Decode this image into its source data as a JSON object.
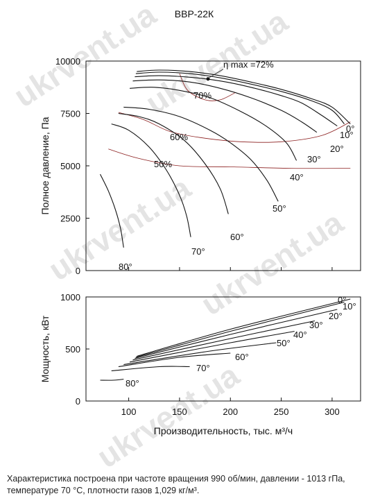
{
  "chart_data": {
    "type": "line",
    "title": "ВВР-22К",
    "xlabel": "Производительность, тыс. м³/ч",
    "x_ticks": [
      "100",
      "150",
      "200",
      "250",
      "300"
    ],
    "xlim": [
      58,
      328
    ],
    "top_panel": {
      "ylabel": "Полное давление, Па",
      "ylim": [
        0,
        10000
      ],
      "y_ticks": [
        "0",
        "2500",
        "5000",
        "7500",
        "10000"
      ],
      "eta_max_label": "η max =72%",
      "eta_max_point": [
        178,
        9150
      ],
      "efficiency_contours": [
        {
          "name": "70%",
          "points": [
            [
              150,
              9400
            ],
            [
              158,
              8600
            ],
            [
              175,
              8150
            ],
            [
              190,
              8150
            ],
            [
              205,
              8500
            ]
          ]
        },
        {
          "name": "60%",
          "points": [
            [
              90,
              7550
            ],
            [
              115,
              7200
            ],
            [
              140,
              6650
            ],
            [
              170,
              6350
            ],
            [
              210,
              6150
            ],
            [
              250,
              6150
            ],
            [
              290,
              6450
            ],
            [
              318,
              7100
            ]
          ]
        },
        {
          "name": "50%",
          "points": [
            [
              80,
              5800
            ],
            [
              110,
              5350
            ],
            [
              150,
              5000
            ],
            [
              200,
              4950
            ],
            [
              260,
              4880
            ],
            [
              318,
              4880
            ]
          ]
        }
      ],
      "series": [
        {
          "name": "0°",
          "points": [
            [
              108,
              9500
            ],
            [
              130,
              9570
            ],
            [
              160,
              9500
            ],
            [
              190,
              9300
            ],
            [
              220,
              9000
            ],
            [
              250,
              8650
            ],
            [
              280,
              8200
            ],
            [
              300,
              7800
            ],
            [
              318,
              7000
            ]
          ]
        },
        {
          "name": "10°",
          "points": [
            [
              107,
              9400
            ],
            [
              130,
              9470
            ],
            [
              160,
              9400
            ],
            [
              190,
              9200
            ],
            [
              220,
              8900
            ],
            [
              250,
              8550
            ],
            [
              280,
              8100
            ],
            [
              300,
              7650
            ],
            [
              312,
              7000
            ]
          ]
        },
        {
          "name": "20°",
          "points": [
            [
              106,
              9250
            ],
            [
              130,
              9300
            ],
            [
              160,
              9230
            ],
            [
              190,
              9050
            ],
            [
              220,
              8750
            ],
            [
              250,
              8350
            ],
            [
              270,
              8000
            ],
            [
              290,
              7400
            ],
            [
              305,
              6900
            ]
          ]
        },
        {
          "name": "30°",
          "points": [
            [
              104,
              9050
            ],
            [
              130,
              9100
            ],
            [
              160,
              9000
            ],
            [
              190,
              8700
            ],
            [
              220,
              8250
            ],
            [
              250,
              7650
            ],
            [
              270,
              7100
            ],
            [
              285,
              6600
            ]
          ]
        },
        {
          "name": "40°",
          "points": [
            [
              101,
              8700
            ],
            [
              125,
              8750
            ],
            [
              150,
              8600
            ],
            [
              180,
              8250
            ],
            [
              210,
              7600
            ],
            [
              235,
              6900
            ],
            [
              255,
              6100
            ],
            [
              265,
              5250
            ]
          ]
        },
        {
          "name": "50°",
          "points": [
            [
              95,
              7800
            ],
            [
              120,
              7700
            ],
            [
              150,
              7350
            ],
            [
              180,
              6700
            ],
            [
              200,
              6100
            ],
            [
              220,
              5300
            ],
            [
              236,
              4300
            ],
            [
              247,
              3300
            ]
          ]
        },
        {
          "name": "60°",
          "points": [
            [
              90,
              7500
            ],
            [
              110,
              7350
            ],
            [
              130,
              7000
            ],
            [
              155,
              6200
            ],
            [
              175,
              5100
            ],
            [
              190,
              3900
            ],
            [
              198,
              2700
            ]
          ]
        },
        {
          "name": "70°",
          "points": [
            [
              83,
              7000
            ],
            [
              100,
              6700
            ],
            [
              120,
              5900
            ],
            [
              137,
              4800
            ],
            [
              150,
              3600
            ],
            [
              157,
              2600
            ],
            [
              161,
              1600
            ]
          ]
        },
        {
          "name": "80°",
          "points": [
            [
              72,
              4600
            ],
            [
              80,
              3800
            ],
            [
              87,
              2900
            ],
            [
              92,
              2000
            ],
            [
              95,
              1100
            ]
          ]
        }
      ],
      "series_labels": [
        "0°",
        "10°",
        "20°",
        "30°",
        "40°",
        "50°",
        "60°",
        "70°",
        "80°"
      ],
      "contour_labels": [
        "70%",
        "60%",
        "50%"
      ]
    },
    "bottom_panel": {
      "ylabel": "Мощность, кВт",
      "ylim": [
        0,
        1000
      ],
      "y_ticks": [
        "0",
        "500",
        "1000"
      ],
      "series": [
        {
          "name": "0°",
          "points": [
            [
              108,
              430
            ],
            [
              200,
              690
            ],
            [
              318,
              980
            ]
          ]
        },
        {
          "name": "10°",
          "points": [
            [
              107,
              420
            ],
            [
              200,
              670
            ],
            [
              312,
              950
            ]
          ]
        },
        {
          "name": "20°",
          "points": [
            [
              106,
              410
            ],
            [
              200,
              640
            ],
            [
              305,
              880
            ]
          ]
        },
        {
          "name": "30°",
          "points": [
            [
              104,
              395
            ],
            [
              200,
              600
            ],
            [
              283,
              770
            ]
          ]
        },
        {
          "name": "40°",
          "points": [
            [
              101,
              375
            ],
            [
              200,
              560
            ],
            [
              263,
              670
            ]
          ]
        },
        {
          "name": "50°",
          "points": [
            [
              95,
              350
            ],
            [
              180,
              480
            ],
            [
              245,
              560
            ]
          ]
        },
        {
          "name": "60°",
          "points": [
            [
              90,
              330
            ],
            [
              150,
              420
            ],
            [
              200,
              460
            ]
          ]
        },
        {
          "name": "70°",
          "points": [
            [
              83,
              290
            ],
            [
              130,
              330
            ],
            [
              160,
              330
            ]
          ]
        },
        {
          "name": "80°",
          "points": [
            [
              72,
              200
            ],
            [
              85,
              200
            ],
            [
              95,
              210
            ]
          ]
        }
      ],
      "series_labels": [
        "0°",
        "10°",
        "20°",
        "30°",
        "40°",
        "50°",
        "60°",
        "70°",
        "80°"
      ]
    },
    "colors": {
      "curve": "#111111",
      "efficiency_curve": "#8b1e1e",
      "axis": "#111111"
    }
  },
  "watermark": "ukrvent.ua",
  "footnote": "Характеристика построена при частоте вращения 990 об/мин, давлении - 1013 гПа, температуре 70 °С, плотности газов 1,029 кг/м³."
}
